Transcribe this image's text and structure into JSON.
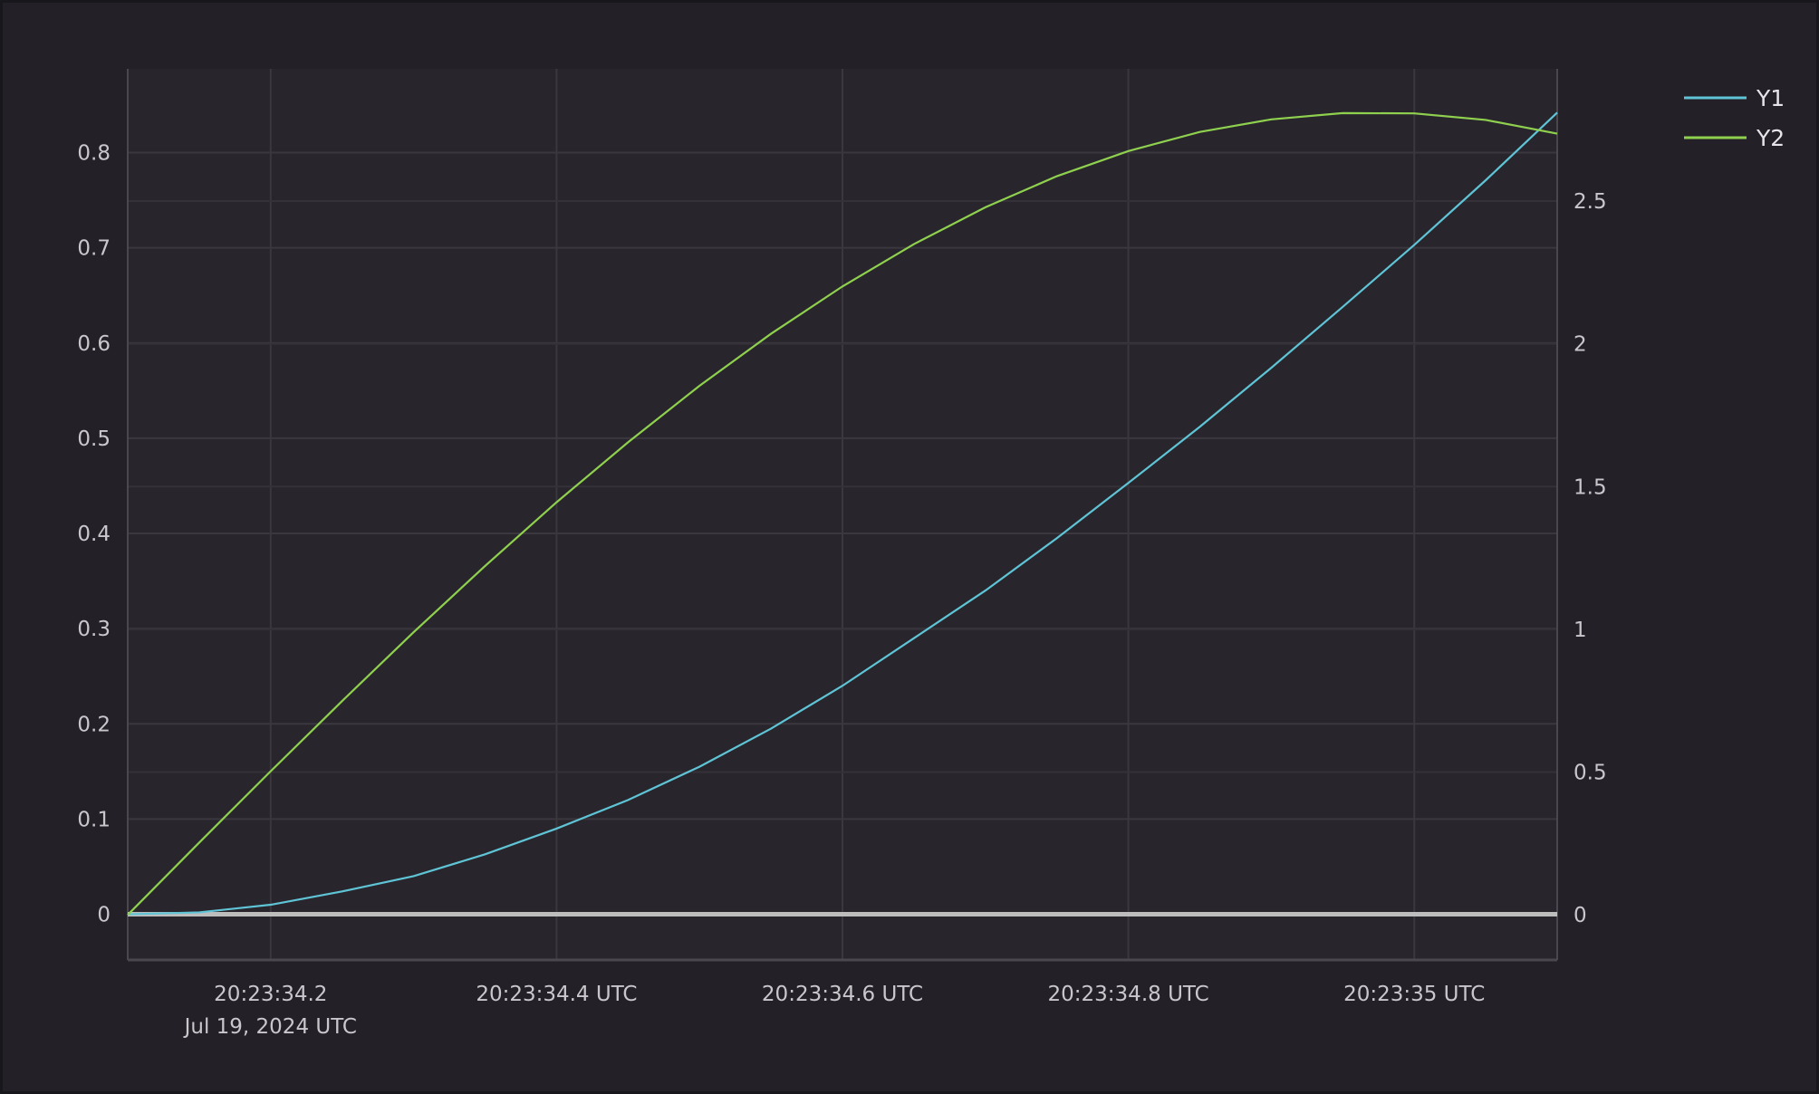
{
  "chart_data": {
    "type": "line",
    "title": "",
    "xlabel": "",
    "ylabel": "",
    "y2label": "",
    "x_date_label": "Jul 19, 2024 UTC",
    "x": [
      "20:23:34.10",
      "20:23:34.15",
      "20:23:34.20",
      "20:23:34.25",
      "20:23:34.30",
      "20:23:34.35",
      "20:23:34.40",
      "20:23:34.45",
      "20:23:34.50",
      "20:23:34.55",
      "20:23:34.60",
      "20:23:34.65",
      "20:23:34.70",
      "20:23:34.75",
      "20:23:34.80",
      "20:23:34.85",
      "20:23:34.90",
      "20:23:34.95",
      "20:23:35.00",
      "20:23:35.05",
      "20:23:35.10"
    ],
    "xlim": [
      "20:23:34.10",
      "20:23:35.10"
    ],
    "x_ticks": [
      {
        "value": "20:23:34.2",
        "label": "20:23:34.2"
      },
      {
        "value": "20:23:34.4",
        "label": "20:23:34.4 UTC"
      },
      {
        "value": "20:23:34.6",
        "label": "20:23:34.6 UTC"
      },
      {
        "value": "20:23:34.8",
        "label": "20:23:34.8 UTC"
      },
      {
        "value": "20:23:35.0",
        "label": "20:23:35 UTC"
      }
    ],
    "ylim": [
      -0.048,
      0.888
    ],
    "y_ticks": [
      "0",
      "0.1",
      "0.2",
      "0.3",
      "0.4",
      "0.5",
      "0.6",
      "0.7",
      "0.8"
    ],
    "y2lim": [
      -0.158,
      2.963
    ],
    "y2_ticks": [
      "0",
      "0.5",
      "1",
      "1.5",
      "2",
      "2.5"
    ],
    "grid": true,
    "legend": "top-right",
    "series": [
      {
        "name": "Y1",
        "axis": "left",
        "color": "#5fc4d6",
        "values": [
          0,
          0.002,
          0.01,
          0.024,
          0.04,
          0.063,
          0.09,
          0.12,
          0.155,
          0.195,
          0.24,
          0.29,
          0.34,
          0.395,
          0.453,
          0.512,
          0.574,
          0.638,
          0.703,
          0.771,
          0.842
        ]
      },
      {
        "name": "Y2",
        "axis": "right",
        "color": "#8fd14f",
        "values": [
          0,
          0.253,
          0.503,
          0.749,
          0.99,
          1.222,
          1.445,
          1.655,
          1.853,
          2.035,
          2.201,
          2.349,
          2.478,
          2.587,
          2.675,
          2.742,
          2.786,
          2.808,
          2.807,
          2.784,
          2.736
        ]
      }
    ],
    "zero_line_color": "#bdbdbd"
  }
}
